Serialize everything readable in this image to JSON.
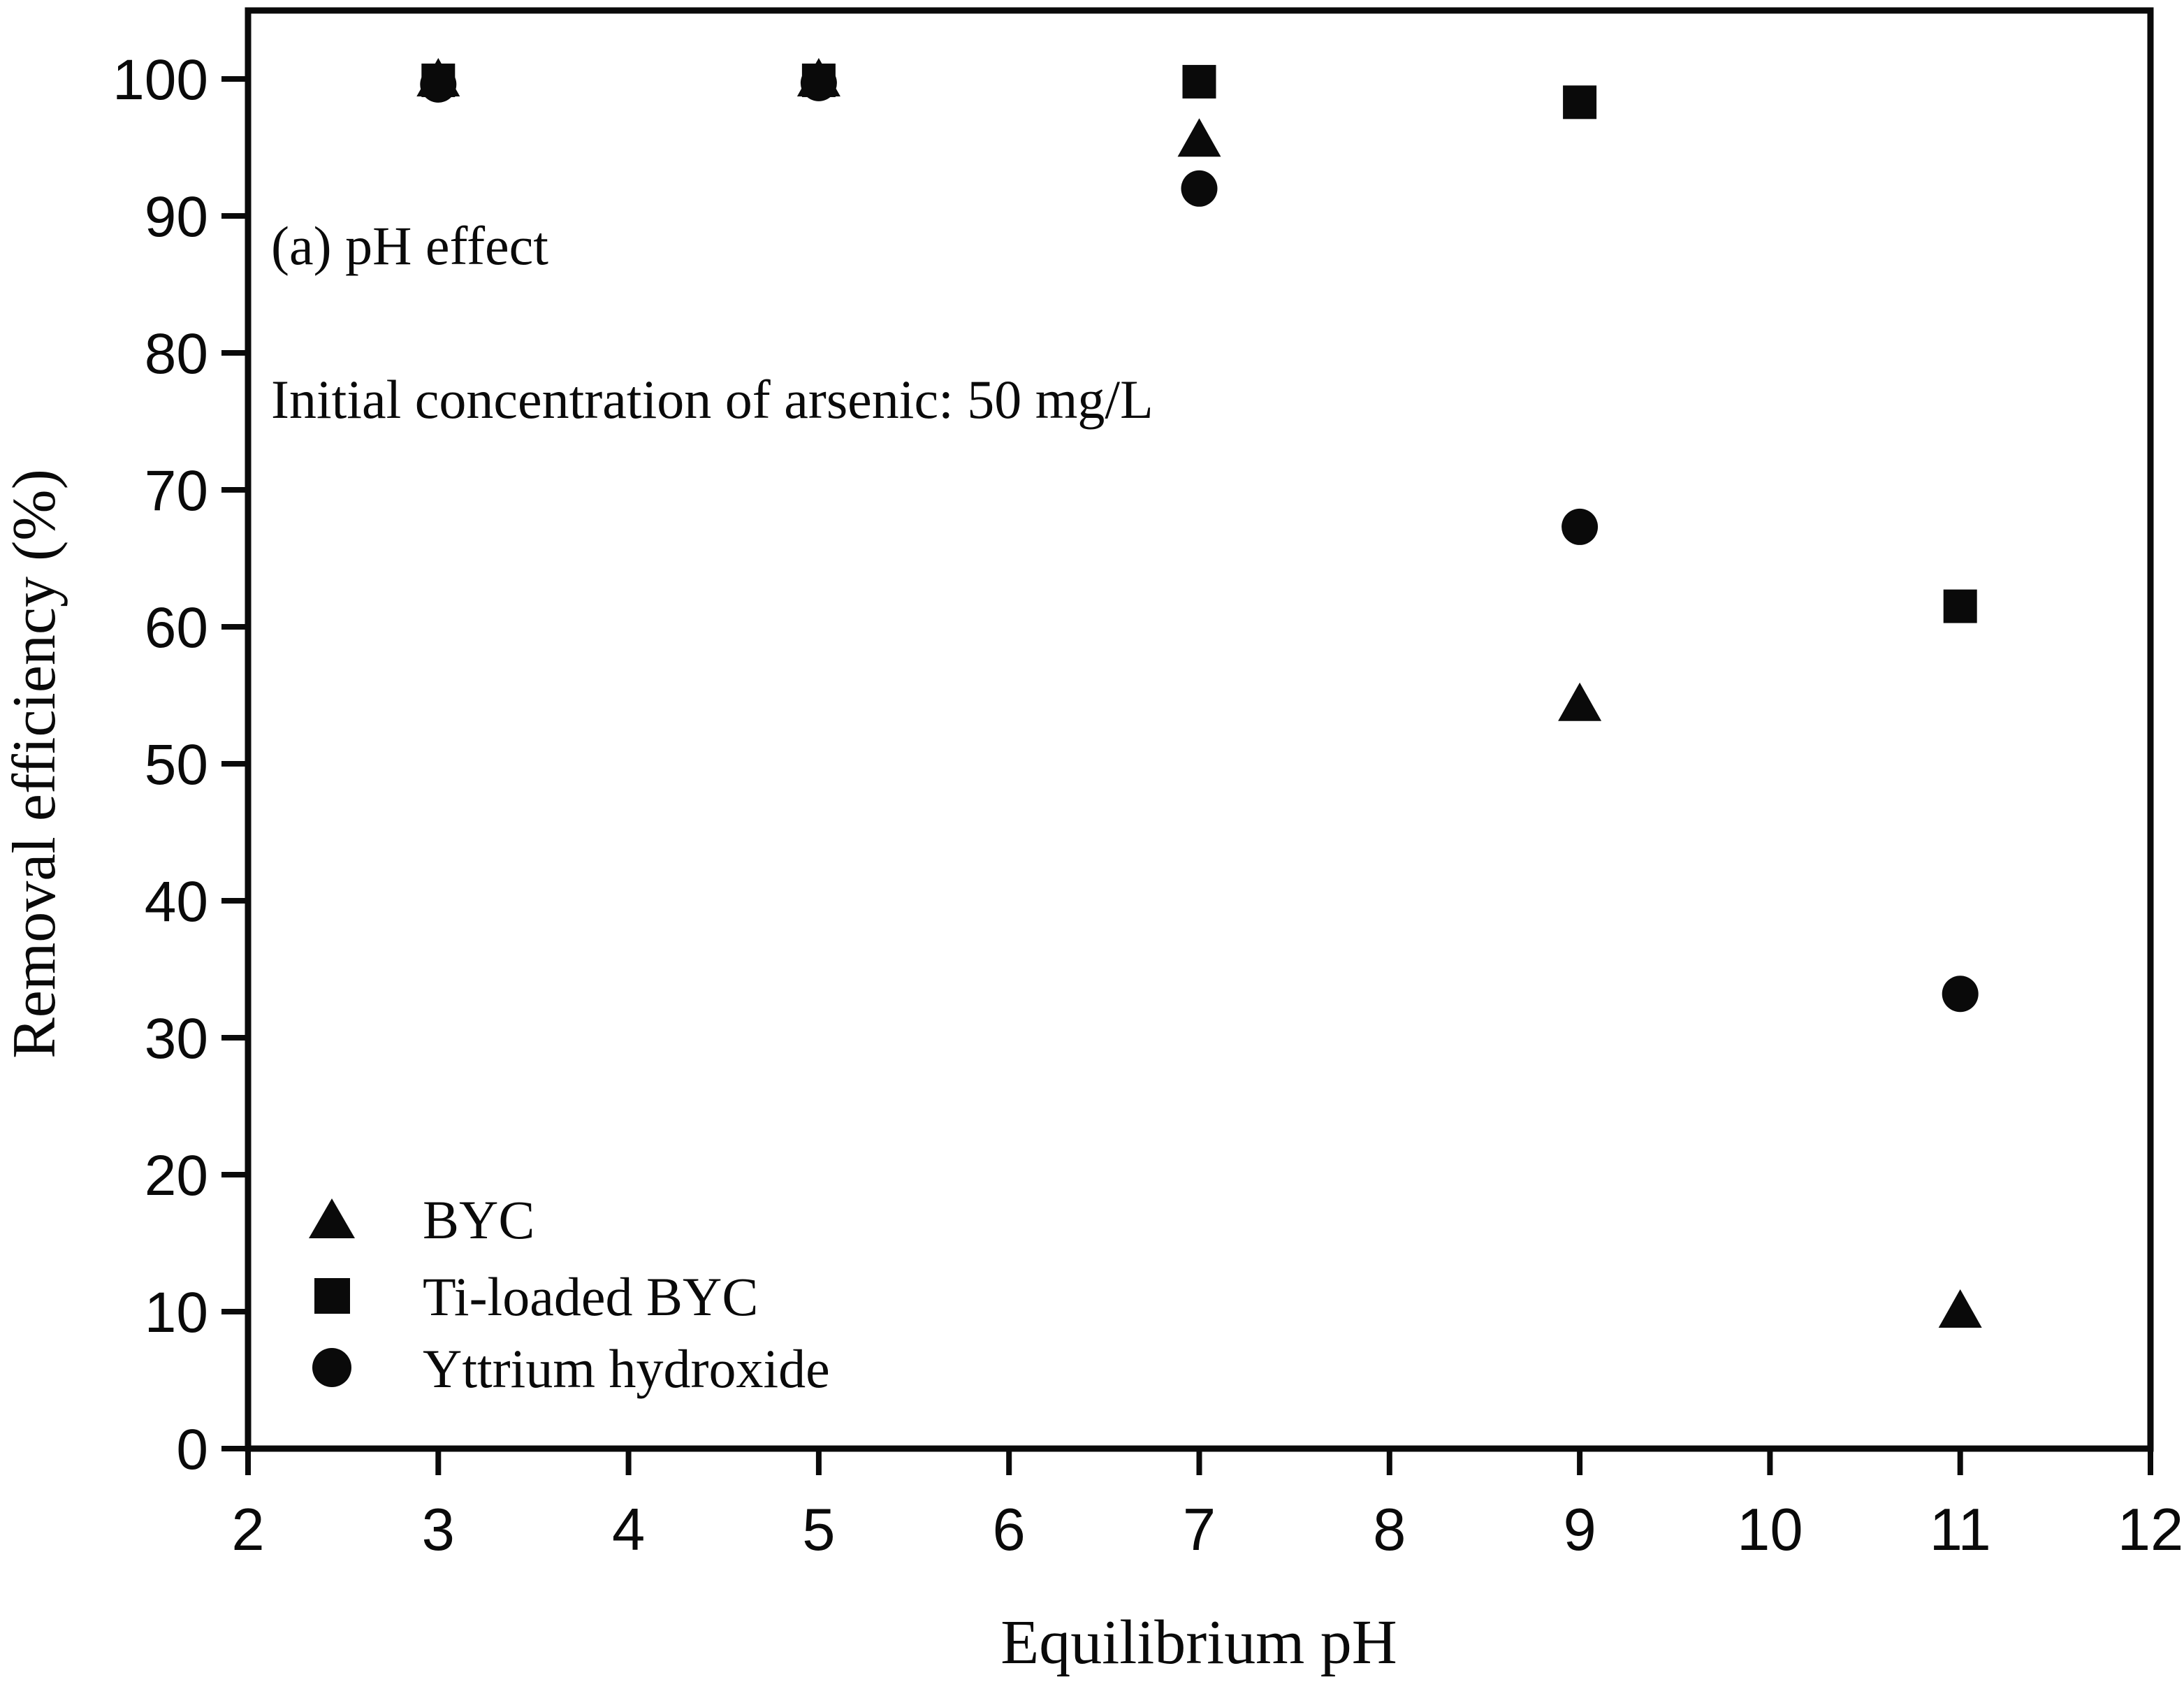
{
  "figure": {
    "background": "#ffffff",
    "ink_color": "#0a0a0a"
  },
  "chart_data": {
    "type": "scatter",
    "title": "",
    "annotation_line1": "(a) pH effect",
    "annotation_line2": "Initial concentration of arsenic: 50 mg/L",
    "xlabel": "Equilibrium pH",
    "ylabel": "Removal efficiency (%)",
    "xlim": [
      2,
      12
    ],
    "ylim": [
      0,
      100
    ],
    "x_ticks": [
      2,
      3,
      4,
      5,
      6,
      7,
      8,
      9,
      10,
      11,
      12
    ],
    "y_ticks": [
      0,
      10,
      20,
      30,
      40,
      50,
      60,
      70,
      80,
      90,
      100
    ],
    "x": [
      3,
      5,
      7,
      9,
      11
    ],
    "series": [
      {
        "name": "BYC",
        "marker": "triangle",
        "values": [
          99.9,
          99.9,
          95.5,
          54.3,
          10.0
        ]
      },
      {
        "name": "Ti-loaded BYC",
        "marker": "square",
        "values": [
          99.9,
          99.9,
          99.8,
          98.3,
          61.5
        ]
      },
      {
        "name": "Yttrium hydroxide",
        "marker": "circle",
        "values": [
          99.6,
          99.7,
          92.0,
          67.3,
          33.2
        ]
      }
    ],
    "legend_position": "lower-left",
    "grid": false,
    "marker_color": "#0a0a0a"
  }
}
